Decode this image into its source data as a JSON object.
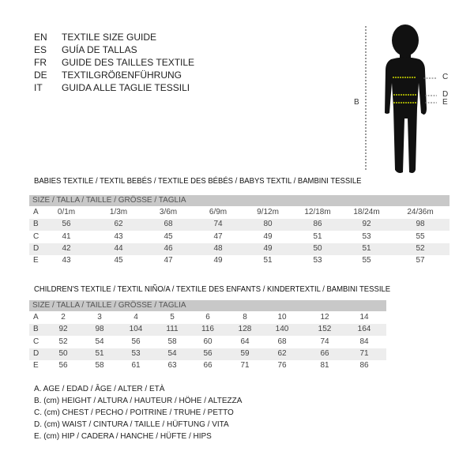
{
  "languages": [
    {
      "code": "EN",
      "text": "TEXTILE SIZE GUIDE"
    },
    {
      "code": "ES",
      "text": "GUÍA DE TALLAS"
    },
    {
      "code": "FR",
      "text": "GUIDE DES TAILLES TEXTILE"
    },
    {
      "code": "DE",
      "text": "TEXTILGRÖßENFÜHRUNG"
    },
    {
      "code": "IT",
      "text": "GUIDA ALLE TAGLIE TESSILI"
    }
  ],
  "figure": {
    "labels": {
      "b": "B",
      "c": "C",
      "d": "D",
      "e": "E"
    },
    "measure_color": "#c8d400"
  },
  "babies": {
    "title": "BABIES TEXTILE / TEXTIL BEBÉS / TEXTILE DES BÉBÉS / BABYS TEXTIL  / BAMBINI TESSILE",
    "header": "SIZE / TALLA / TAILLE / GRÖSSE / TAGLIA",
    "rows": [
      {
        "label": "A",
        "values": [
          "0/1m",
          "1/3m",
          "3/6m",
          "6/9m",
          "9/12m",
          "12/18m",
          "18/24m",
          "24/36m"
        ]
      },
      {
        "label": "B",
        "values": [
          "56",
          "62",
          "68",
          "74",
          "80",
          "86",
          "92",
          "98"
        ]
      },
      {
        "label": "C",
        "values": [
          "41",
          "43",
          "45",
          "47",
          "49",
          "51",
          "53",
          "55"
        ]
      },
      {
        "label": "D",
        "values": [
          "42",
          "44",
          "46",
          "48",
          "49",
          "50",
          "51",
          "52"
        ]
      },
      {
        "label": "E",
        "values": [
          "43",
          "45",
          "47",
          "49",
          "51",
          "53",
          "55",
          "57"
        ]
      }
    ]
  },
  "children": {
    "title": "CHILDREN'S TEXTILE / TEXTIL NIÑO/A / TEXTILE DES ENFANTS / KINDERTEXTIL / BAMBINI TESSILE",
    "header": "SIZE / TALLA / TAILLE / GRÖSSE / TAGLIA",
    "rows": [
      {
        "label": "A",
        "values": [
          "2",
          "3",
          "4",
          "5",
          "6",
          "8",
          "10",
          "12",
          "14"
        ]
      },
      {
        "label": "B",
        "values": [
          "92",
          "98",
          "104",
          "111",
          "116",
          "128",
          "140",
          "152",
          "164"
        ]
      },
      {
        "label": "C",
        "values": [
          "52",
          "54",
          "56",
          "58",
          "60",
          "64",
          "68",
          "74",
          "84"
        ]
      },
      {
        "label": "D",
        "values": [
          "50",
          "51",
          "53",
          "54",
          "56",
          "59",
          "62",
          "66",
          "71"
        ]
      },
      {
        "label": "E",
        "values": [
          "56",
          "58",
          "61",
          "63",
          "66",
          "71",
          "76",
          "81",
          "86"
        ]
      }
    ]
  },
  "legend": [
    "A. AGE / EDAD / ÂGE / ALTER / ETÀ",
    "B. (cm) HEIGHT / ALTURA / HAUTEUR / HÖHE / ALTEZZA",
    "C. (cm) CHEST / PECHO / POITRINE / TRUHE / PETTO",
    "D. (cm) WAIST / CINTURA / TAILLE / HÜFTUNG / VITA",
    "E. (cm) HIP / CADERA / HANCHE / HÜFTE / HIPS"
  ]
}
